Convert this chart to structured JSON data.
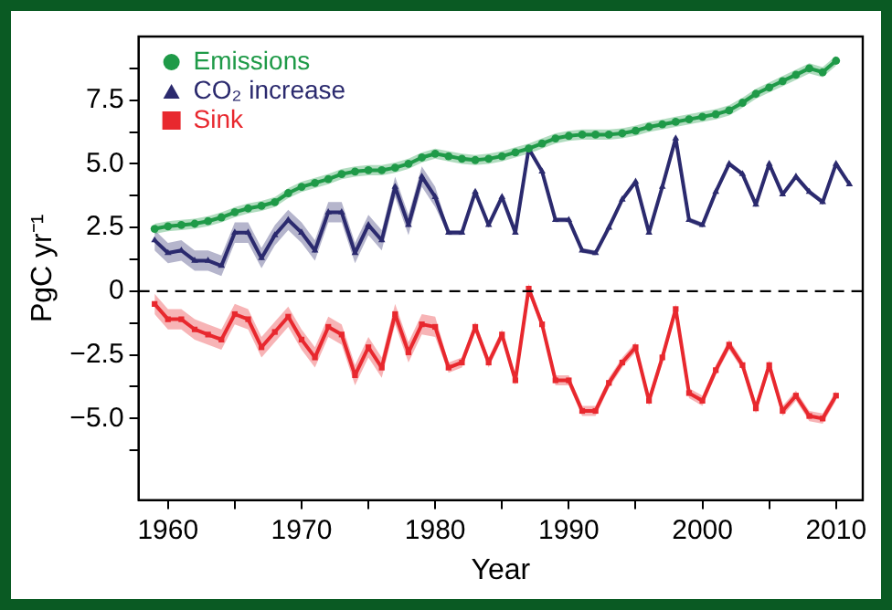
{
  "chart_data": {
    "type": "line",
    "xlabel": "Year",
    "ylabel": "PgC yr⁻¹",
    "legend": "top left",
    "xlim": [
      1957.8,
      2012
    ],
    "ylim": [
      -8.2,
      10
    ],
    "xticks": [
      1960,
      {
        "value": 1965,
        "label": null
      },
      1970,
      {
        "value": 1975,
        "label": null
      },
      1980,
      {
        "value": 1985,
        "label": null
      },
      1990,
      {
        "value": 1995,
        "label": null
      },
      2000,
      {
        "value": 2005,
        "label": null
      },
      2010
    ],
    "yticks": [
      {
        "value": -6.25,
        "label": null
      },
      {
        "value": -5,
        "label": "−5.0"
      },
      {
        "value": -3.75,
        "label": null
      },
      {
        "value": -2.5,
        "label": "−2.5"
      },
      {
        "value": -1.25,
        "label": null
      },
      0,
      {
        "value": 1.25,
        "label": null
      },
      2.5,
      {
        "value": 3.75,
        "label": null
      },
      {
        "value": 5,
        "label": "5.0"
      },
      {
        "value": 6.25,
        "label": null
      },
      7.5,
      {
        "value": 8.75,
        "label": null
      }
    ],
    "ref_lines": [
      {
        "axis": "y",
        "value": 0,
        "color": "#000000",
        "line_style": "dashed"
      }
    ],
    "series": [
      {
        "name": "Emissions",
        "color": "#1f9a48",
        "marker": "circle",
        "x": [
          1959,
          1960,
          1961,
          1962,
          1963,
          1964,
          1965,
          1966,
          1967,
          1968,
          1969,
          1970,
          1971,
          1972,
          1973,
          1974,
          1975,
          1976,
          1977,
          1978,
          1979,
          1980,
          1981,
          1982,
          1983,
          1984,
          1985,
          1986,
          1987,
          1988,
          1989,
          1990,
          1991,
          1992,
          1993,
          1994,
          1995,
          1996,
          1997,
          1998,
          1999,
          2000,
          2001,
          2002,
          2003,
          2004,
          2005,
          2006,
          2007,
          2008,
          2009,
          2010
        ],
        "values": [
          2.45,
          2.55,
          2.6,
          2.65,
          2.75,
          2.9,
          3.1,
          3.25,
          3.35,
          3.5,
          3.85,
          4.1,
          4.25,
          4.4,
          4.6,
          4.7,
          4.75,
          4.75,
          4.85,
          5.0,
          5.25,
          5.4,
          5.3,
          5.2,
          5.15,
          5.2,
          5.3,
          5.45,
          5.6,
          5.8,
          6.0,
          6.1,
          6.15,
          6.15,
          6.15,
          6.2,
          6.3,
          6.45,
          6.55,
          6.65,
          6.75,
          6.85,
          6.95,
          7.1,
          7.4,
          7.75,
          8.0,
          8.25,
          8.5,
          8.75,
          8.6,
          9.05
        ],
        "lower": [
          2.25,
          2.35,
          2.4,
          2.45,
          2.55,
          2.7,
          2.9,
          3.05,
          3.15,
          3.3,
          3.65,
          3.9,
          4.05,
          4.2,
          4.4,
          4.5,
          4.55,
          4.55,
          4.65,
          4.8,
          5.05,
          5.2,
          5.1,
          5.0,
          4.95,
          5.0,
          5.1,
          5.25,
          5.4,
          5.6,
          5.8,
          5.9,
          5.95,
          5.95,
          5.95,
          6.0,
          6.1,
          6.25,
          6.35,
          6.45,
          6.55,
          6.65,
          6.75,
          6.9,
          7.2,
          7.55,
          7.8,
          8.05,
          8.3,
          8.55,
          8.4,
          8.85
        ],
        "upper": [
          2.65,
          2.75,
          2.8,
          2.85,
          2.95,
          3.1,
          3.3,
          3.45,
          3.55,
          3.7,
          4.05,
          4.3,
          4.45,
          4.6,
          4.8,
          4.9,
          4.95,
          4.95,
          5.05,
          5.2,
          5.45,
          5.6,
          5.5,
          5.4,
          5.35,
          5.4,
          5.5,
          5.65,
          5.8,
          6.0,
          6.2,
          6.3,
          6.35,
          6.35,
          6.35,
          6.4,
          6.5,
          6.65,
          6.75,
          6.85,
          6.95,
          7.05,
          7.15,
          7.3,
          7.6,
          7.95,
          8.2,
          8.45,
          8.7,
          8.95,
          8.8,
          9.25
        ]
      },
      {
        "name": "CO₂ increase",
        "color": "#2b2a6e",
        "marker": "triangle",
        "x": [
          1959,
          1960,
          1961,
          1962,
          1963,
          1964,
          1965,
          1966,
          1967,
          1968,
          1969,
          1970,
          1971,
          1972,
          1973,
          1974,
          1975,
          1976,
          1977,
          1978,
          1979,
          1980,
          1981,
          1982,
          1983,
          1984,
          1985,
          1986,
          1987,
          1988,
          1989,
          1990,
          1991,
          1992,
          1993,
          1994,
          1995,
          1996,
          1997,
          1998,
          1999,
          2000,
          2001,
          2002,
          2003,
          2004,
          2005,
          2006,
          2007,
          2008,
          2009,
          2010,
          2011
        ],
        "values": [
          2.0,
          1.5,
          1.6,
          1.2,
          1.2,
          1.0,
          2.3,
          2.3,
          1.3,
          2.2,
          2.8,
          2.3,
          1.6,
          3.1,
          3.1,
          1.5,
          2.6,
          2.0,
          4.1,
          2.6,
          4.5,
          3.7,
          2.3,
          2.3,
          3.9,
          2.6,
          3.7,
          2.3,
          5.6,
          4.7,
          2.8,
          2.8,
          1.6,
          1.5,
          2.5,
          3.6,
          4.3,
          2.3,
          4.1,
          6.0,
          2.8,
          2.6,
          3.9,
          5.0,
          4.6,
          3.4,
          5.0,
          3.8,
          4.5,
          3.9,
          3.5,
          5.0,
          4.2
        ],
        "lower": [
          1.6,
          1.1,
          1.2,
          0.8,
          0.8,
          0.6,
          1.9,
          1.9,
          0.9,
          1.8,
          2.4,
          1.9,
          1.2,
          2.7,
          2.7,
          1.1,
          2.2,
          1.6,
          3.7,
          2.2,
          4.1,
          3.3,
          2.2,
          2.2,
          3.8,
          2.5,
          3.6,
          2.2,
          5.5,
          4.6,
          2.7,
          2.7,
          1.5,
          1.4,
          2.4,
          3.5,
          4.2,
          2.2,
          4.0,
          5.9,
          2.7,
          2.5,
          3.8,
          4.9,
          4.5,
          3.3,
          4.9,
          3.7,
          4.4,
          3.8,
          3.4,
          4.9,
          4.1
        ],
        "upper": [
          2.4,
          1.9,
          2.0,
          1.6,
          1.6,
          1.4,
          2.7,
          2.7,
          1.7,
          2.6,
          3.2,
          2.7,
          2.0,
          3.5,
          3.5,
          1.9,
          3.0,
          2.4,
          4.5,
          3.0,
          4.9,
          4.1,
          2.4,
          2.4,
          4.0,
          2.7,
          3.8,
          2.4,
          5.7,
          4.8,
          2.9,
          2.9,
          1.7,
          1.6,
          2.6,
          3.7,
          4.4,
          2.4,
          4.2,
          6.1,
          2.9,
          2.7,
          4.0,
          5.1,
          4.7,
          3.5,
          5.1,
          3.9,
          4.6,
          4.0,
          3.6,
          5.1,
          4.3
        ]
      },
      {
        "name": "Sink",
        "color": "#e8282e",
        "marker": "square",
        "x": [
          1959,
          1960,
          1961,
          1962,
          1963,
          1964,
          1965,
          1966,
          1967,
          1968,
          1969,
          1970,
          1971,
          1972,
          1973,
          1974,
          1975,
          1976,
          1977,
          1978,
          1979,
          1980,
          1981,
          1982,
          1983,
          1984,
          1985,
          1986,
          1987,
          1988,
          1989,
          1990,
          1991,
          1992,
          1993,
          1994,
          1995,
          1996,
          1997,
          1998,
          1999,
          2000,
          2001,
          2002,
          2003,
          2004,
          2005,
          2006,
          2007,
          2008,
          2009,
          2010
        ],
        "values": [
          -0.5,
          -1.1,
          -1.1,
          -1.5,
          -1.7,
          -1.9,
          -0.9,
          -1.1,
          -2.2,
          -1.6,
          -1.0,
          -1.9,
          -2.6,
          -1.4,
          -1.7,
          -3.3,
          -2.2,
          -3.0,
          -0.9,
          -2.4,
          -1.3,
          -1.4,
          -3.0,
          -2.8,
          -1.4,
          -2.8,
          -1.7,
          -3.5,
          0.1,
          -1.3,
          -3.5,
          -3.5,
          -4.7,
          -4.7,
          -3.6,
          -2.8,
          -2.2,
          -4.3,
          -2.6,
          -0.7,
          -4.0,
          -4.3,
          -3.1,
          -2.1,
          -2.9,
          -4.6,
          -2.9,
          -4.7,
          -4.1,
          -4.9,
          -5.0,
          -4.1
        ],
        "lower": [
          -0.9,
          -1.5,
          -1.5,
          -1.9,
          -2.1,
          -2.3,
          -1.3,
          -1.5,
          -2.6,
          -2.0,
          -1.4,
          -2.3,
          -3.0,
          -1.8,
          -2.1,
          -3.7,
          -2.6,
          -3.4,
          -1.3,
          -2.8,
          -1.7,
          -1.8,
          -3.2,
          -3.0,
          -1.6,
          -3.0,
          -1.9,
          -3.7,
          -0.1,
          -1.5,
          -3.7,
          -3.7,
          -4.9,
          -4.9,
          -3.8,
          -3.0,
          -2.4,
          -4.5,
          -2.8,
          -0.9,
          -4.2,
          -4.5,
          -3.3,
          -2.3,
          -3.1,
          -4.8,
          -3.1,
          -4.9,
          -4.3,
          -5.1,
          -5.2,
          -4.3
        ],
        "upper": [
          -0.1,
          -0.7,
          -0.7,
          -1.1,
          -1.3,
          -1.5,
          -0.5,
          -0.7,
          -1.8,
          -1.2,
          -0.6,
          -1.5,
          -2.2,
          -1.0,
          -1.3,
          -2.9,
          -1.8,
          -2.6,
          -0.5,
          -2.0,
          -0.9,
          -1.0,
          -2.8,
          -2.6,
          -1.2,
          -2.6,
          -1.5,
          -3.3,
          0.3,
          -1.1,
          -3.3,
          -3.3,
          -4.5,
          -4.5,
          -3.4,
          -2.6,
          -2.0,
          -4.1,
          -2.4,
          -0.5,
          -3.8,
          -4.1,
          -2.9,
          -1.9,
          -2.7,
          -4.4,
          -2.7,
          -4.5,
          -3.9,
          -4.7,
          -4.8,
          -3.9
        ]
      }
    ]
  }
}
